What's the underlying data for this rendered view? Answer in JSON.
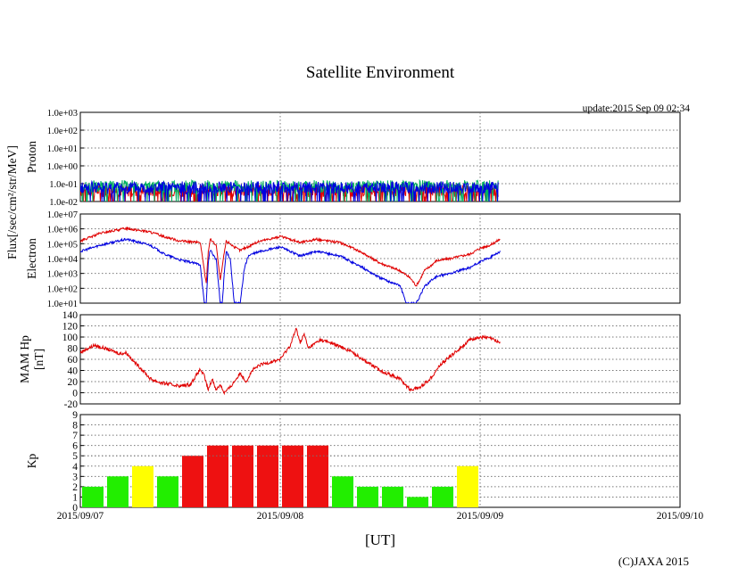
{
  "title": "Satellite Environment",
  "update_text": "update:2015 Sep 09 02:34",
  "xlabel": "[UT]",
  "copyright": "(C)JAXA 2015",
  "shared_ylabel": "Flux[/sec/cm²/str/MeV]",
  "x_ticks": [
    "2015/09/07",
    "2015/09/08",
    "2015/09/09",
    "2015/09/10"
  ],
  "colors": {
    "red": "#e00000",
    "blue": "#0000e0",
    "green": "#00b060",
    "kp_green": "#22ee00",
    "kp_yellow": "#ffff00",
    "kp_red": "#ee1111"
  },
  "chart_data": [
    {
      "id": "proton",
      "type": "line",
      "ylabel": "Proton",
      "yscale": "log",
      "ylim": [
        0.01,
        1000
      ],
      "y_ticks": [
        "1.0e-02",
        "1.0e-01",
        "1.0e+00",
        "1.0e+01",
        "1.0e+02",
        "1.0e+03"
      ],
      "x_days": [
        0,
        3
      ],
      "series": [
        {
          "color": "#e00000",
          "x": [
            0,
            0.25,
            0.5,
            0.75,
            1.0,
            1.25,
            1.5,
            1.75,
            2.09
          ],
          "y": [
            0.04,
            0.04,
            0.04,
            0.04,
            0.04,
            0.04,
            0.04,
            0.04,
            0.04
          ]
        },
        {
          "color": "#00b060",
          "x": [
            0,
            0.25,
            0.5,
            0.75,
            1.0,
            1.25,
            1.5,
            1.75,
            2.09
          ],
          "y": [
            0.07,
            0.07,
            0.07,
            0.07,
            0.07,
            0.07,
            0.07,
            0.07,
            0.07
          ]
        },
        {
          "color": "#0000e0",
          "x": [
            0,
            0.25,
            0.5,
            0.75,
            1.0,
            1.25,
            1.5,
            1.75,
            2.09
          ],
          "y": [
            0.06,
            0.06,
            0.06,
            0.06,
            0.06,
            0.06,
            0.06,
            0.06,
            0.06
          ]
        }
      ]
    },
    {
      "id": "electron",
      "type": "line",
      "ylabel": "Electron",
      "yscale": "log",
      "ylim": [
        10,
        10000000
      ],
      "y_ticks": [
        "1.0e+01",
        "1.0e+02",
        "1.0e+03",
        "1.0e+04",
        "1.0e+05",
        "1.0e+06",
        "1.0e+07"
      ],
      "x_days": [
        0,
        3
      ],
      "series": [
        {
          "color": "#e00000",
          "x": [
            0,
            0.1,
            0.23,
            0.35,
            0.42,
            0.5,
            0.6,
            0.63,
            0.64,
            0.65,
            0.68,
            0.7,
            0.72,
            0.73,
            0.75,
            0.77,
            0.8,
            0.82,
            0.84,
            0.86,
            0.9,
            1.0,
            1.05,
            1.1,
            1.18,
            1.3,
            1.4,
            1.5,
            1.6,
            1.65,
            1.68,
            1.7,
            1.72,
            1.75,
            1.78,
            1.85,
            1.95,
            2.0,
            2.05,
            2.1
          ],
          "y": [
            150000,
            500000,
            1100000,
            600000,
            300000,
            150000,
            120000,
            200,
            30000,
            200000,
            80000,
            300,
            25000,
            150000,
            100000,
            60000,
            35000,
            50000,
            60000,
            90000,
            150000,
            300000,
            200000,
            120000,
            200000,
            120000,
            30000,
            5000,
            1500,
            500,
            150,
            400,
            1500,
            3000,
            7000,
            10000,
            20000,
            50000,
            80000,
            200000
          ]
        },
        {
          "color": "#0000e0",
          "x": [
            0,
            0.1,
            0.23,
            0.35,
            0.42,
            0.5,
            0.6,
            0.62,
            0.63,
            0.64,
            0.65,
            0.68,
            0.7,
            0.71,
            0.72,
            0.73,
            0.75,
            0.77,
            0.8,
            0.82,
            0.84,
            0.86,
            0.9,
            1.0,
            1.05,
            1.1,
            1.18,
            1.3,
            1.4,
            1.5,
            1.6,
            1.63,
            1.65,
            1.68,
            1.7,
            1.72,
            1.75,
            1.78,
            1.85,
            1.95,
            2.0,
            2.05,
            2.1
          ],
          "y": [
            30000,
            80000,
            200000,
            80000,
            20000,
            8000,
            4000,
            10,
            10,
            5000,
            40000,
            8000,
            10,
            10,
            1000,
            30000,
            10000,
            10,
            10,
            2000,
            15000,
            20000,
            30000,
            60000,
            30000,
            15000,
            30000,
            15000,
            3000,
            500,
            150,
            10,
            10,
            10,
            30,
            120,
            300,
            600,
            1000,
            2500,
            6000,
            12000,
            30000
          ]
        }
      ]
    },
    {
      "id": "mam",
      "type": "line",
      "ylabel": "MAM Hp\n[nT]",
      "ylim": [
        -20,
        140
      ],
      "y_ticks": [
        "-20",
        "0",
        "20",
        "40",
        "60",
        "80",
        "100",
        "120",
        "140"
      ],
      "x_days": [
        0,
        3
      ],
      "series": [
        {
          "color": "#e00000",
          "x": [
            0,
            0.03,
            0.07,
            0.12,
            0.2,
            0.23,
            0.27,
            0.3,
            0.35,
            0.4,
            0.45,
            0.5,
            0.55,
            0.6,
            0.62,
            0.64,
            0.66,
            0.68,
            0.7,
            0.72,
            0.75,
            0.78,
            0.8,
            0.83,
            0.86,
            0.9,
            1.0,
            1.05,
            1.08,
            1.1,
            1.12,
            1.14,
            1.2,
            1.25,
            1.35,
            1.5,
            1.6,
            1.65,
            1.7,
            1.75,
            1.8,
            1.9,
            1.95,
            2.0,
            2.05,
            2.1
          ],
          "y": [
            72,
            78,
            85,
            80,
            70,
            72,
            55,
            45,
            25,
            18,
            15,
            12,
            15,
            42,
            30,
            5,
            25,
            5,
            15,
            0,
            10,
            25,
            35,
            20,
            40,
            50,
            60,
            85,
            115,
            90,
            105,
            80,
            95,
            90,
            75,
            40,
            25,
            5,
            10,
            25,
            50,
            80,
            95,
            100,
            98,
            90
          ]
        }
      ]
    },
    {
      "id": "kp",
      "type": "bar",
      "ylabel": "Kp",
      "ylim": [
        0,
        9
      ],
      "y_ticks": [
        "0",
        "1",
        "2",
        "3",
        "4",
        "5",
        "6",
        "7",
        "8",
        "9"
      ],
      "bar_width_days": 0.125,
      "values": [
        2,
        3,
        4,
        3,
        5,
        6,
        6,
        6,
        6,
        6,
        3,
        2,
        2,
        1,
        2,
        4
      ],
      "colors": [
        "#22ee00",
        "#22ee00",
        "#ffff00",
        "#22ee00",
        "#ee1111",
        "#ee1111",
        "#ee1111",
        "#ee1111",
        "#ee1111",
        "#ee1111",
        "#22ee00",
        "#22ee00",
        "#22ee00",
        "#22ee00",
        "#22ee00",
        "#ffff00"
      ],
      "reference_line": 5
    }
  ]
}
